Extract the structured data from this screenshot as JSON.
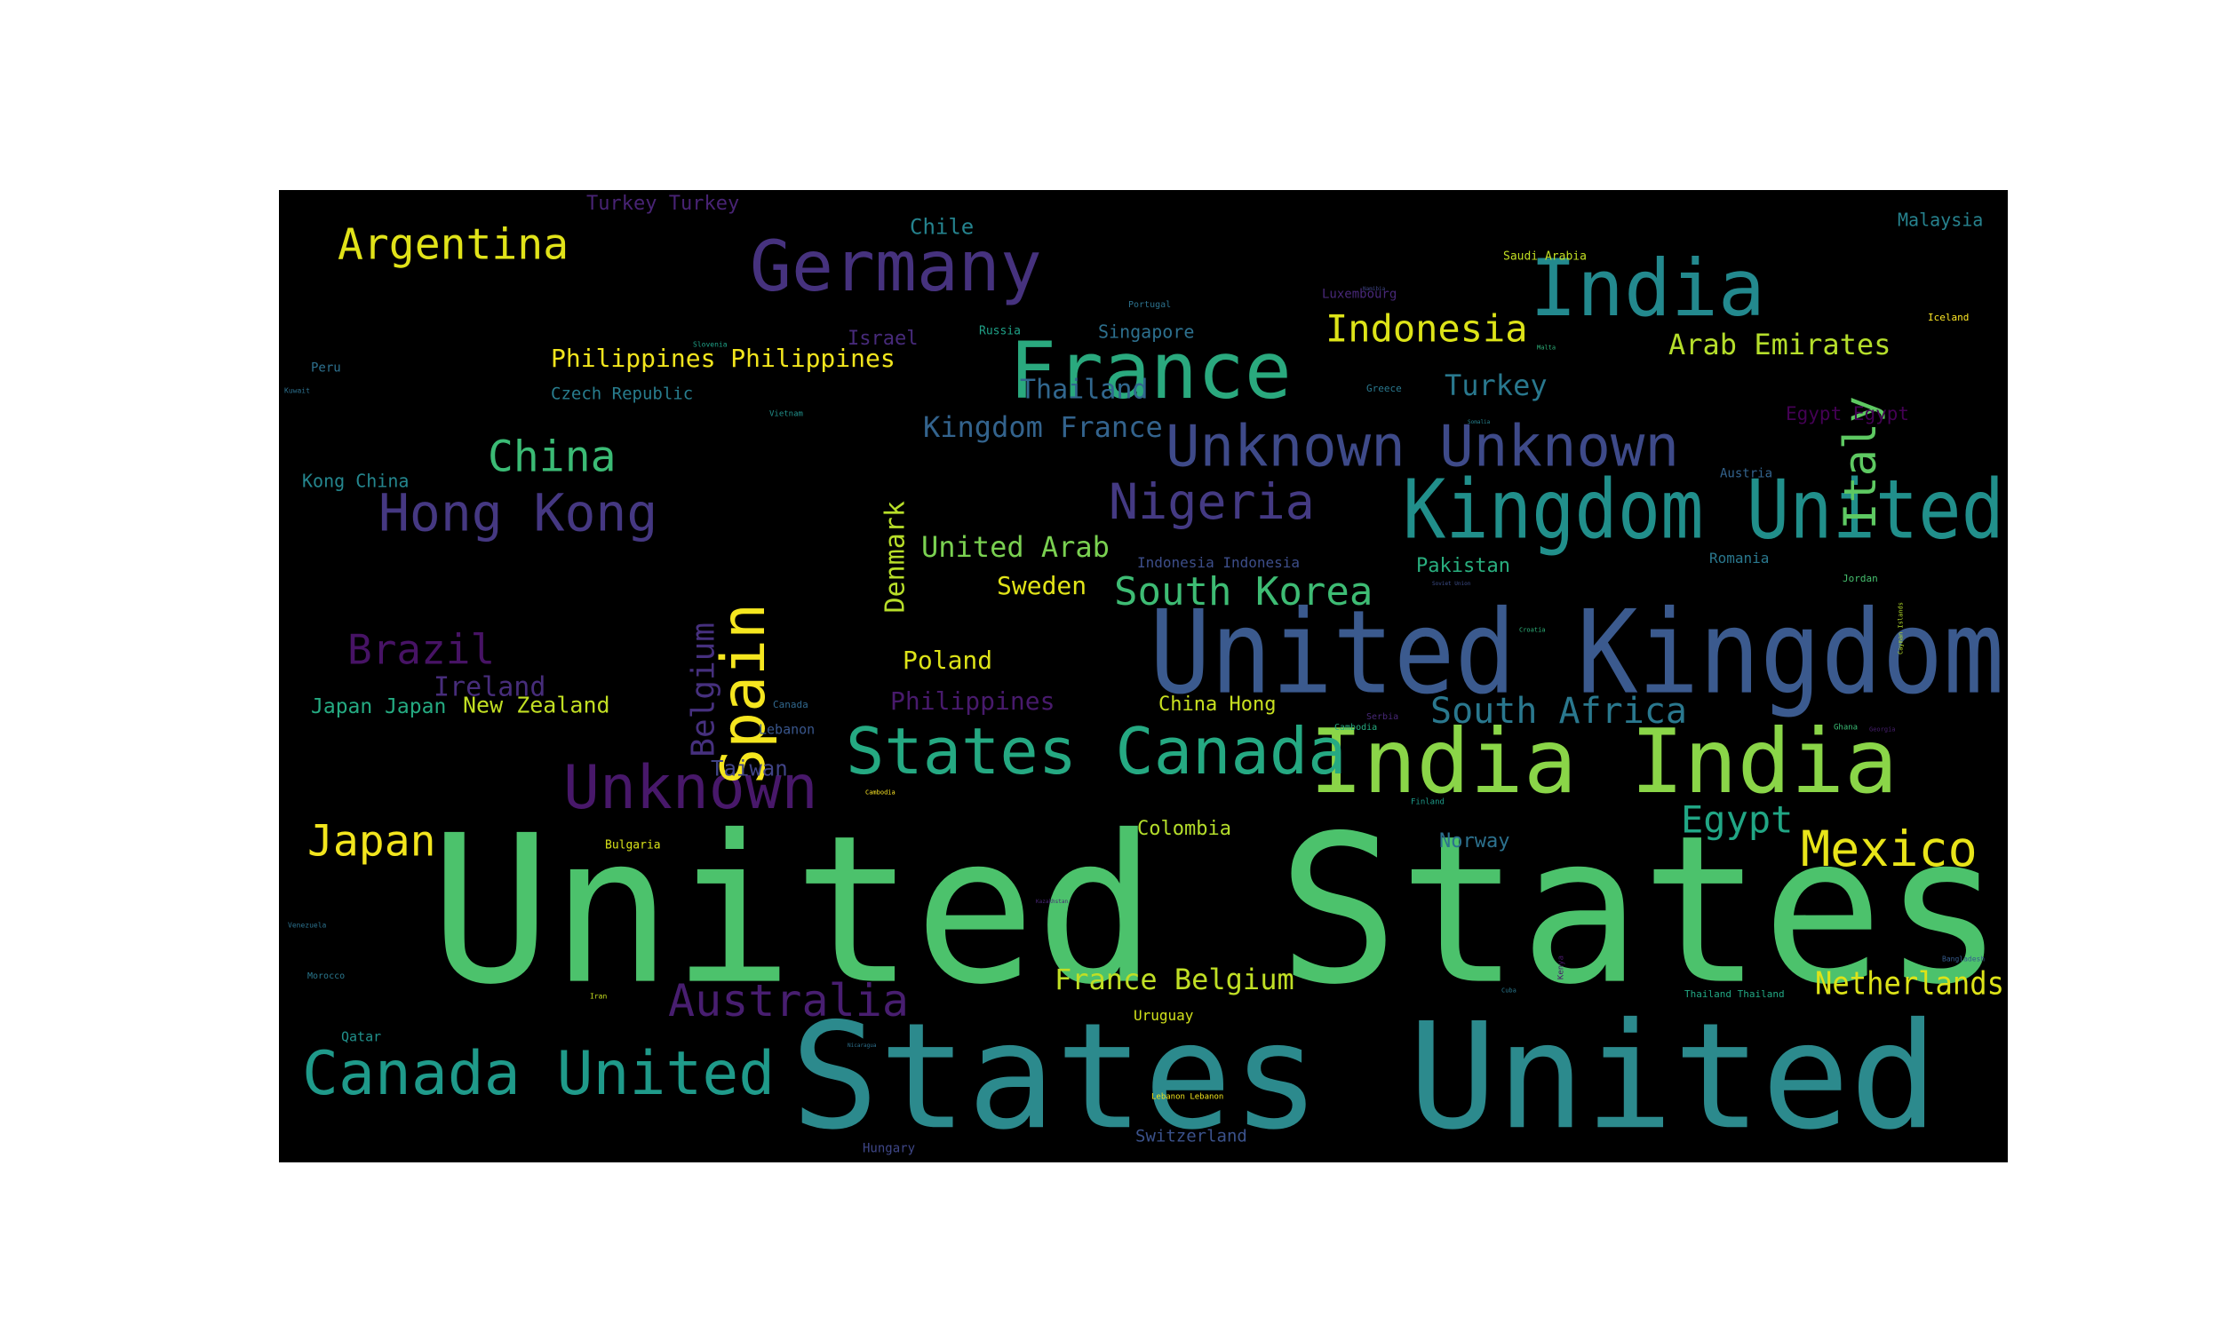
{
  "chart_data": {
    "type": "wordcloud",
    "title": "",
    "background": "#000000",
    "colormap": "viridis",
    "words": [
      {
        "text": "United States",
        "weight": 100,
        "color": "#4cc26c"
      },
      {
        "text": "States United",
        "weight": 76,
        "color": "#2c8a8d"
      },
      {
        "text": "United Kingdom",
        "weight": 58,
        "color": "#3b5a8e"
      },
      {
        "text": "India India",
        "weight": 50,
        "color": "#8ad548"
      },
      {
        "text": "Kingdom United",
        "weight": 44,
        "color": "#218f8b"
      },
      {
        "text": "France",
        "weight": 42,
        "color": "#2aa97e"
      },
      {
        "text": "India",
        "weight": 42,
        "color": "#23898e"
      },
      {
        "text": "Germany",
        "weight": 38,
        "color": "#46327e"
      },
      {
        "text": "States Canada",
        "weight": 37,
        "color": "#25a982"
      },
      {
        "text": "Unknown",
        "weight": 35,
        "color": "#48186a"
      },
      {
        "text": "Canada United",
        "weight": 35,
        "color": "#1f9a8a"
      },
      {
        "text": "Unknown Unknown",
        "weight": 33,
        "color": "#3e4a89"
      },
      {
        "text": "Spain",
        "weight": 33,
        "color": "#f5e61f"
      },
      {
        "text": "Hong Kong",
        "weight": 30,
        "color": "#453882"
      },
      {
        "text": "Nigeria",
        "weight": 30,
        "color": "#443a83"
      },
      {
        "text": "Mexico",
        "weight": 30,
        "color": "#e8e419"
      },
      {
        "text": "Italy",
        "weight": 28,
        "color": "#5ec962"
      },
      {
        "text": "Australia",
        "weight": 28,
        "color": "#481e70"
      },
      {
        "text": "Argentina",
        "weight": 26,
        "color": "#e1e319"
      },
      {
        "text": "Japan",
        "weight": 26,
        "color": "#f2e51d"
      },
      {
        "text": "China",
        "weight": 26,
        "color": "#3bbb75"
      },
      {
        "text": "Brazil",
        "weight": 26,
        "color": "#471365"
      },
      {
        "text": "South Korea",
        "weight": 24,
        "color": "#3ebc74"
      },
      {
        "text": "Indonesia",
        "weight": 24,
        "color": "#dde318"
      },
      {
        "text": "Egypt",
        "weight": 22,
        "color": "#21a685"
      },
      {
        "text": "South Africa",
        "weight": 22,
        "color": "#2a788e"
      },
      {
        "text": "Belgium",
        "weight": 20,
        "color": "#46307e"
      },
      {
        "text": "Netherlands",
        "weight": 20,
        "color": "#dde318"
      },
      {
        "text": "France Belgium",
        "weight": 19,
        "color": "#c0df25"
      },
      {
        "text": "Kingdom France",
        "weight": 19,
        "color": "#33638d"
      },
      {
        "text": "Arab Emirates",
        "weight": 19,
        "color": "#b5de2b"
      },
      {
        "text": "Turkey",
        "weight": 19,
        "color": "#29788e"
      },
      {
        "text": "Denmark",
        "weight": 18,
        "color": "#b8de29"
      },
      {
        "text": "United Arab",
        "weight": 18,
        "color": "#7ad151"
      },
      {
        "text": "Thailand",
        "weight": 18,
        "color": "#31678e"
      },
      {
        "text": "Ireland",
        "weight": 17,
        "color": "#472d7b"
      },
      {
        "text": "Philippines",
        "weight": 17,
        "color": "#481a6c"
      },
      {
        "text": "Philippines Philippines",
        "weight": 17,
        "color": "#f1e51d"
      },
      {
        "text": "Sweden",
        "weight": 17,
        "color": "#e2e418"
      },
      {
        "text": "Poland",
        "weight": 17,
        "color": "#dde318"
      },
      {
        "text": "Chile",
        "weight": 16,
        "color": "#25838e"
      },
      {
        "text": "Taiwan",
        "weight": 16,
        "color": "#414487"
      },
      {
        "text": "New Zealand",
        "weight": 16,
        "color": "#c2df23"
      },
      {
        "text": "Japan Japan",
        "weight": 15,
        "color": "#25ab82"
      },
      {
        "text": "Israel",
        "weight": 14,
        "color": "#472a7a"
      },
      {
        "text": "Turkey Turkey",
        "weight": 14,
        "color": "#482374"
      },
      {
        "text": "China Hong",
        "weight": 14,
        "color": "#c8e020"
      },
      {
        "text": "Colombia",
        "weight": 14,
        "color": "#b5de2b"
      },
      {
        "text": "Norway",
        "weight": 14,
        "color": "#2c718e"
      },
      {
        "text": "Pakistan",
        "weight": 13,
        "color": "#29af7f"
      },
      {
        "text": "Egypt Egypt",
        "weight": 13,
        "color": "#440154"
      },
      {
        "text": "Malaysia",
        "weight": 13,
        "color": "#26828e"
      },
      {
        "text": "Singapore",
        "weight": 12,
        "color": "#2d708e"
      },
      {
        "text": "Kong China",
        "weight": 12,
        "color": "#24868e"
      },
      {
        "text": "Czech Republic",
        "weight": 12,
        "color": "#287d8e"
      },
      {
        "text": "Switzerland",
        "weight": 12,
        "color": "#3b528b"
      },
      {
        "text": "Uruguay",
        "weight": 11,
        "color": "#d2e21b"
      },
      {
        "text": "Qatar",
        "weight": 10,
        "color": "#21918c"
      },
      {
        "text": "Peru",
        "weight": 10,
        "color": "#2d708e"
      },
      {
        "text": "Luxembourg",
        "weight": 10,
        "color": "#482878"
      },
      {
        "text": "Lebanon",
        "weight": 10,
        "color": "#39568c"
      },
      {
        "text": "Hungary",
        "weight": 10,
        "color": "#3f4788"
      },
      {
        "text": "Indonesia Indonesia",
        "weight": 10,
        "color": "#3d4e8a"
      },
      {
        "text": "Romania",
        "weight": 10,
        "color": "#2a788e"
      },
      {
        "text": "Bulgaria",
        "weight": 9,
        "color": "#d8e219"
      },
      {
        "text": "Austria",
        "weight": 9,
        "color": "#33638d"
      },
      {
        "text": "Russia",
        "weight": 9,
        "color": "#1fa187"
      },
      {
        "text": "Saudi Arabia",
        "weight": 9,
        "color": "#c2df23"
      },
      {
        "text": "Morocco",
        "weight": 8,
        "color": "#2a788e"
      },
      {
        "text": "Thailand Thailand",
        "weight": 8,
        "color": "#22a884"
      },
      {
        "text": "Jordan",
        "weight": 8,
        "color": "#46c06f"
      },
      {
        "text": "Iceland",
        "weight": 8,
        "color": "#fde725"
      },
      {
        "text": "Greece",
        "weight": 8,
        "color": "#2a788e"
      },
      {
        "text": "Cambodia",
        "weight": 8,
        "color": "#27ad81"
      },
      {
        "text": "Serbia",
        "weight": 8,
        "color": "#482878"
      },
      {
        "text": "Canada",
        "weight": 8,
        "color": "#31688e"
      },
      {
        "text": "Portugal",
        "weight": 8,
        "color": "#2c728e"
      },
      {
        "text": "Kuwait",
        "weight": 7,
        "color": "#2d708e"
      },
      {
        "text": "Vietnam",
        "weight": 7,
        "color": "#21918c"
      },
      {
        "text": "Venezuela",
        "weight": 7,
        "color": "#2c728e"
      },
      {
        "text": "Bangladesh",
        "weight": 7,
        "color": "#365c8d"
      },
      {
        "text": "Lebanon Lebanon",
        "weight": 7,
        "color": "#f1e51d"
      },
      {
        "text": "Finland",
        "weight": 7,
        "color": "#1e9b8a"
      },
      {
        "text": "Kenya",
        "weight": 7,
        "color": "#481769"
      },
      {
        "text": "Ghana",
        "weight": 7,
        "color": "#3bbb75"
      },
      {
        "text": "Slovenia",
        "weight": 6,
        "color": "#1fa187"
      },
      {
        "text": "Malta",
        "weight": 6,
        "color": "#2fb47c"
      },
      {
        "text": "Iran",
        "weight": 6,
        "color": "#c8e020"
      },
      {
        "text": "Cuba",
        "weight": 6,
        "color": "#2a788e"
      },
      {
        "text": "Croatia",
        "weight": 6,
        "color": "#2fb47c"
      },
      {
        "text": "Georgia",
        "weight": 6,
        "color": "#481f70"
      },
      {
        "text": "Cambodia",
        "weight": 6,
        "color": "#fde725"
      },
      {
        "text": "Cayman Islands",
        "weight": 5,
        "color": "#b5de2b"
      },
      {
        "text": "Namibia",
        "weight": 5,
        "color": "#404688"
      },
      {
        "text": "Soviet Union",
        "weight": 5,
        "color": "#3d4e8a"
      },
      {
        "text": "Somalia",
        "weight": 5,
        "color": "#26828e"
      },
      {
        "text": "Kazakhstan",
        "weight": 5,
        "color": "#482677"
      },
      {
        "text": "Nicaragua",
        "weight": 5,
        "color": "#2d718e"
      }
    ]
  }
}
